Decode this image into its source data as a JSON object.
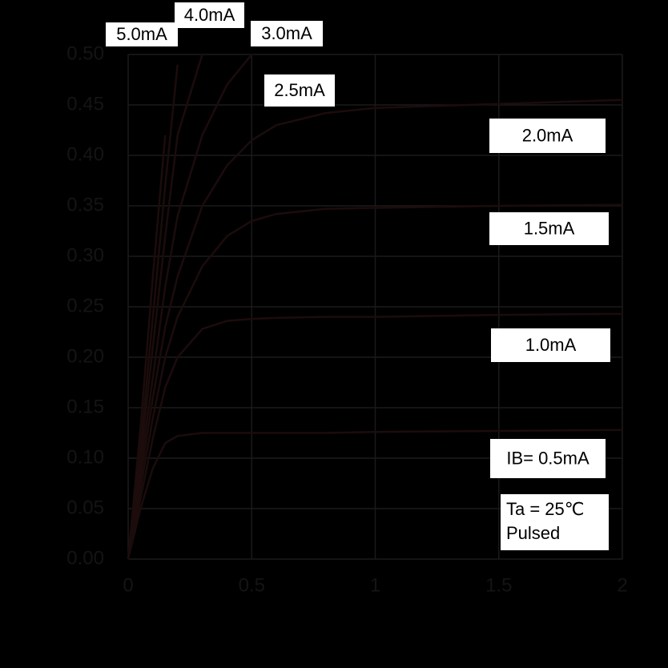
{
  "chart_data": {
    "type": "line",
    "x": [
      0,
      0.05,
      0.1,
      0.15,
      0.2,
      0.3,
      0.4,
      0.5,
      0.6,
      0.8,
      1.0,
      1.5,
      2.0
    ],
    "series": [
      {
        "name": "IB= 0.5mA",
        "color": "#1c0c0c",
        "values": [
          0,
          0.05,
          0.09,
          0.115,
          0.122,
          0.125,
          0.125,
          0.125,
          0.125,
          0.125,
          0.126,
          0.127,
          0.128
        ]
      },
      {
        "name": "1.0mA",
        "color": "#1c0c0c",
        "values": [
          0,
          0.06,
          0.12,
          0.17,
          0.2,
          0.228,
          0.236,
          0.238,
          0.239,
          0.24,
          0.24,
          0.242,
          0.243
        ]
      },
      {
        "name": "1.5mA",
        "color": "#1c0c0c",
        "values": [
          0,
          0.07,
          0.14,
          0.2,
          0.24,
          0.29,
          0.32,
          0.335,
          0.342,
          0.347,
          0.348,
          0.35,
          0.351
        ]
      },
      {
        "name": "2.0mA",
        "color": "#1c0c0c",
        "values": [
          0,
          0.08,
          0.16,
          0.23,
          0.28,
          0.35,
          0.39,
          0.415,
          0.43,
          0.442,
          0.447,
          0.451,
          0.455
        ]
      },
      {
        "name": "2.5mA",
        "color": "#1c0c0c",
        "values": [
          0,
          0.09,
          0.18,
          0.27,
          0.34,
          0.42,
          0.47,
          0.5,
          null,
          null,
          null,
          null,
          null
        ]
      },
      {
        "name": "3.0mA",
        "color": "#1c0c0c",
        "values": [
          0,
          0.1,
          0.21,
          0.32,
          0.42,
          0.5,
          null,
          null,
          null,
          null,
          null,
          null,
          null
        ]
      },
      {
        "name": "4.0mA",
        "color": "#1c0c0c",
        "values": [
          0,
          0.11,
          0.24,
          0.37,
          0.49,
          null,
          null,
          null,
          null,
          null,
          null,
          null,
          null
        ]
      },
      {
        "name": "5.0mA",
        "color": "#1c0c0c",
        "values": [
          0,
          0.13,
          0.28,
          0.42,
          null,
          null,
          null,
          null,
          null,
          null,
          null,
          null,
          null
        ]
      }
    ],
    "annotations": [
      "Ta = 25℃",
      "Pulsed"
    ],
    "xlim": [
      0,
      2
    ],
    "xticks": [
      0,
      0.5,
      1,
      1.5,
      2
    ],
    "ylim": [
      0,
      0.5
    ],
    "yticks": [
      {
        "value": 0,
        "label": "0.00"
      },
      {
        "value": 0.05,
        "label": "0.05"
      },
      {
        "value": 0.1,
        "label": "0.10"
      },
      {
        "value": 0.15,
        "label": "0.15"
      },
      {
        "value": 0.2,
        "label": "0.20"
      },
      {
        "value": 0.25,
        "label": "0.25"
      },
      {
        "value": 0.3,
        "label": "0.30"
      },
      {
        "value": 0.35,
        "label": "0.35"
      },
      {
        "value": 0.4,
        "label": "0.40"
      },
      {
        "value": 0.45,
        "label": "0.45"
      },
      {
        "value": 0.5,
        "label": "0.50"
      }
    ],
    "grid": true
  }
}
